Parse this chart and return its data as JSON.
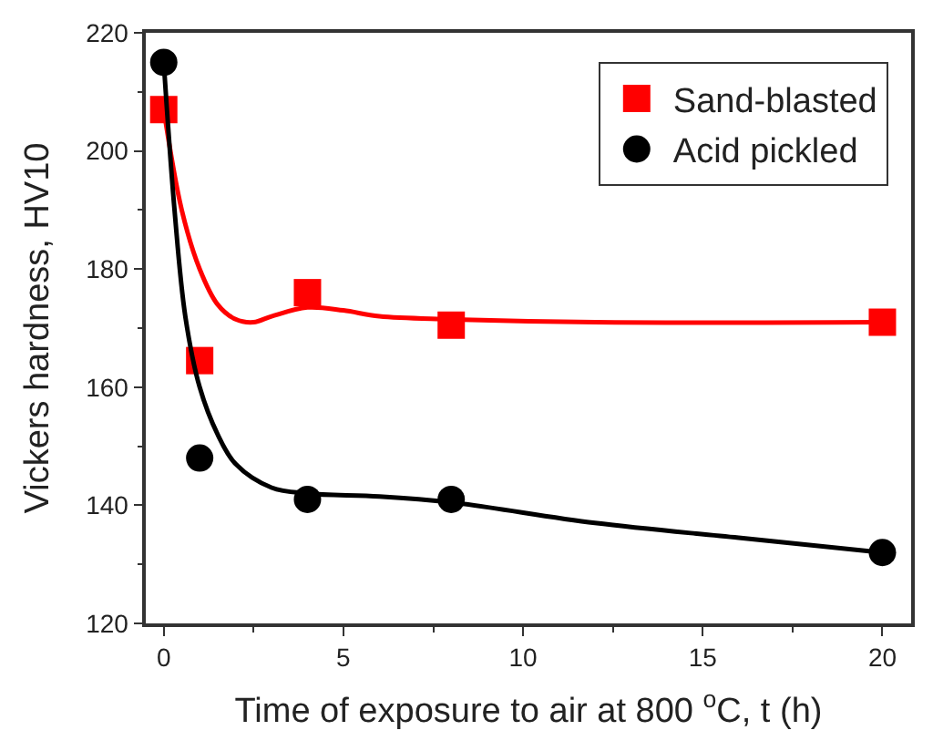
{
  "chart_data": {
    "type": "scatter",
    "xlabel": "Time of exposure to air at 800 $^{o}$C, t (h)",
    "ylabel": "Vickers hardness, HV10",
    "xlim": [
      -0.5,
      20.8
    ],
    "xticks": [
      0,
      5,
      10,
      15,
      20
    ],
    "ylim": [
      120,
      220
    ],
    "yticks": [
      120,
      140,
      160,
      180,
      200,
      220
    ],
    "legend": "top right",
    "x": [
      0,
      1,
      4,
      8,
      20
    ],
    "series": [
      {
        "name": "Sand-blasted",
        "color": "#ff0000",
        "marker": "square",
        "values": [
          207,
          164.5,
          176,
          170.5,
          171
        ]
      },
      {
        "name": "Acid pickled",
        "color": "#000000",
        "marker": "circle",
        "values": [
          215,
          148,
          141,
          141,
          132
        ]
      },
      {
        "type": "line",
        "color": "#ff0000",
        "marker": "none",
        "x": [
          0,
          0.5,
          1,
          1.5,
          2,
          2.5,
          3,
          4,
          5,
          6,
          8,
          12,
          20
        ],
        "values": [
          207,
          190,
          180,
          174,
          171.5,
          171,
          172,
          173.5,
          173,
          172,
          171.5,
          171,
          171
        ]
      },
      {
        "type": "line",
        "color": "#000000",
        "marker": "none",
        "x": [
          0,
          0.3,
          0.6,
          1,
          1.5,
          2,
          3,
          4,
          6,
          8,
          12,
          16,
          20
        ],
        "values": [
          215,
          190,
          172,
          160,
          152,
          147,
          143,
          142,
          141.5,
          140.5,
          137,
          134.5,
          132
        ]
      }
    ]
  }
}
